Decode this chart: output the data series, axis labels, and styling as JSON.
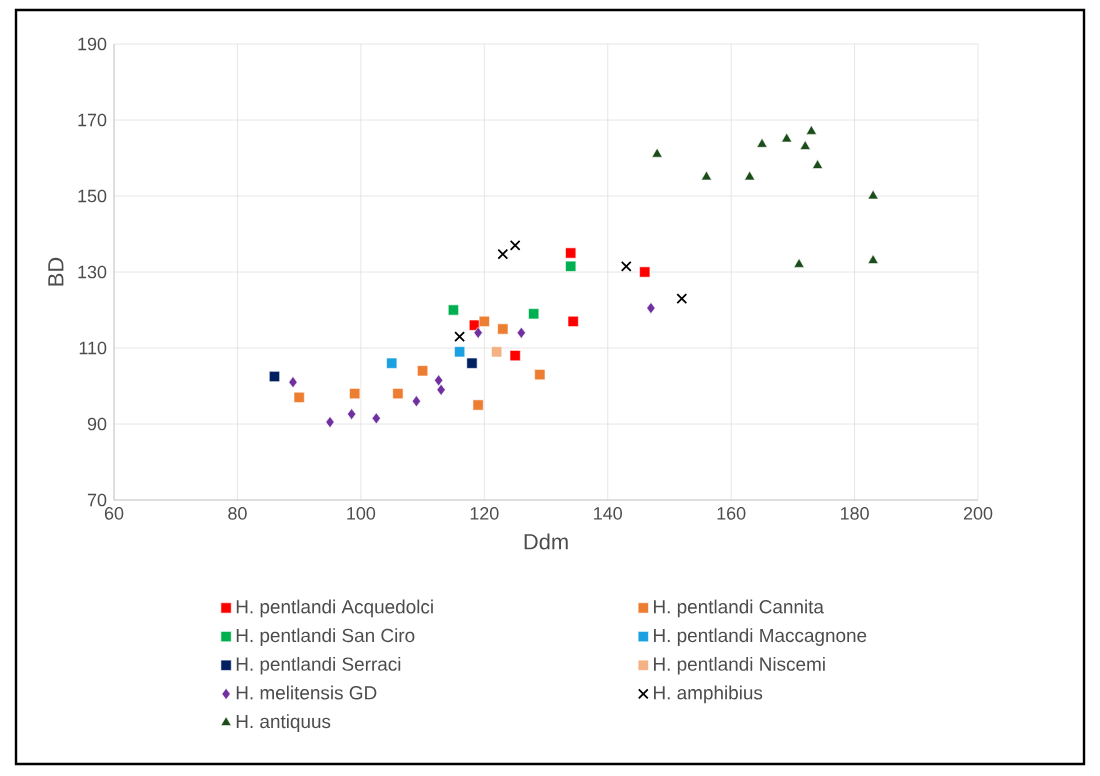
{
  "chart_data": {
    "type": "scatter",
    "xlabel": "Ddm",
    "ylabel": "BD",
    "xlim": [
      60,
      200
    ],
    "ylim": [
      70,
      190
    ],
    "xticks": [
      60,
      80,
      100,
      120,
      140,
      160,
      180,
      200
    ],
    "yticks": [
      70,
      90,
      110,
      130,
      150,
      170,
      190
    ],
    "grid": true,
    "legend": "bottom",
    "series": [
      {
        "name": "H. pentlandi Acquedolci",
        "color": "#ff0000",
        "marker": "square",
        "x": [
          118.4,
          125,
          134.4,
          134,
          146
        ],
        "values": [
          116,
          108,
          117,
          135,
          130
        ]
      },
      {
        "name": "H. pentlandi Cannita",
        "color": "#ed7d31",
        "marker": "square",
        "x": [
          90,
          99,
          106,
          110,
          120,
          123,
          129,
          119
        ],
        "values": [
          97,
          98,
          98,
          104,
          117,
          115,
          103,
          95
        ]
      },
      {
        "name": "H. pentlandi San Ciro",
        "color": "#00b050",
        "marker": "square",
        "x": [
          115,
          128,
          134
        ],
        "values": [
          120,
          119,
          131.5
        ]
      },
      {
        "name": "H. pentlandi Maccagnone",
        "color": "#1ba1e2",
        "marker": "square",
        "x": [
          105,
          116
        ],
        "values": [
          106,
          109
        ]
      },
      {
        "name": "H. pentlandi Serraci",
        "color": "#002060",
        "marker": "square",
        "x": [
          86,
          118
        ],
        "values": [
          102.5,
          106
        ]
      },
      {
        "name": "H. pentlandi Niscemi",
        "color": "#f4b183",
        "marker": "square",
        "x": [
          122
        ],
        "values": [
          109
        ]
      },
      {
        "name": "H. melitensis GD",
        "color": "#7030a0",
        "marker": "diamond",
        "x": [
          89,
          95,
          98.5,
          102.5,
          109,
          112.6,
          113,
          119,
          126,
          147
        ],
        "values": [
          101,
          90.5,
          92.6,
          91.5,
          96,
          101.5,
          99,
          114,
          114,
          120.5
        ]
      },
      {
        "name": "H. amphibius",
        "color": "#000000",
        "marker": "cross",
        "x": [
          116,
          123,
          125,
          143,
          152
        ],
        "values": [
          113,
          134.7,
          137,
          131.5,
          123
        ]
      },
      {
        "name": "H. antiquus",
        "color": "#1b4d1b",
        "marker": "triangle",
        "x": [
          148,
          156,
          163,
          165,
          169,
          173,
          172,
          174,
          183,
          171,
          183
        ],
        "values": [
          161,
          155,
          155,
          163.6,
          165,
          167,
          163,
          158,
          150,
          132,
          133
        ]
      }
    ]
  }
}
